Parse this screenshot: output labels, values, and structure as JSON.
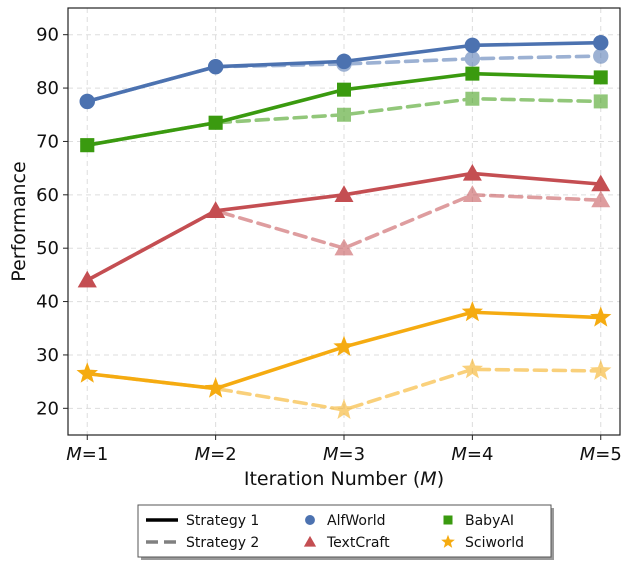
{
  "chart_data": {
    "type": "line",
    "xlabel": "Iteration Number (M)",
    "ylabel": "Performance",
    "categories": [
      "M = 1",
      "M = 2",
      "M = 3",
      "M = 4",
      "M = 5"
    ],
    "x": [
      1,
      2,
      3,
      4,
      5
    ],
    "ylim": [
      15,
      95
    ],
    "yticks": [
      20,
      30,
      40,
      50,
      60,
      70,
      80,
      90
    ],
    "grid": true,
    "legend_position": "bottom",
    "strategies": [
      {
        "name": "Strategy 1",
        "linestyle": "solid",
        "legend_color": "#000000"
      },
      {
        "name": "Strategy 2",
        "linestyle": "dashed",
        "legend_color": "#808080"
      }
    ],
    "environments": [
      {
        "name": "AlfWorld",
        "marker": "circle",
        "color": "#4c72b0"
      },
      {
        "name": "BabyAI",
        "marker": "square",
        "color": "#3a9a0f"
      },
      {
        "name": "TextCraft",
        "marker": "triangle",
        "color": "#c44e52"
      },
      {
        "name": "Sciworld",
        "marker": "star",
        "color": "#f5ab11"
      }
    ],
    "series": [
      {
        "environment": "AlfWorld",
        "strategy": "Strategy 2",
        "values": [
          77.5,
          84.0,
          84.5,
          85.5,
          86.0
        ]
      },
      {
        "environment": "AlfWorld",
        "strategy": "Strategy 1",
        "values": [
          77.5,
          84.0,
          85.0,
          88.0,
          88.5
        ]
      },
      {
        "environment": "BabyAI",
        "strategy": "Strategy 2",
        "values": [
          69.3,
          73.5,
          75.0,
          78.0,
          77.5
        ]
      },
      {
        "environment": "BabyAI",
        "strategy": "Strategy 1",
        "values": [
          69.3,
          73.5,
          79.7,
          82.7,
          82.0
        ]
      },
      {
        "environment": "TextCraft",
        "strategy": "Strategy 2",
        "values": [
          44.0,
          57.0,
          50.0,
          60.0,
          59.0
        ]
      },
      {
        "environment": "TextCraft",
        "strategy": "Strategy 1",
        "values": [
          44.0,
          57.0,
          60.0,
          64.0,
          62.0
        ]
      },
      {
        "environment": "Sciworld",
        "strategy": "Strategy 2",
        "values": [
          26.5,
          23.7,
          19.7,
          27.3,
          27.0
        ]
      },
      {
        "environment": "Sciworld",
        "strategy": "Strategy 1",
        "values": [
          26.5,
          23.7,
          31.5,
          38.0,
          37.0
        ]
      }
    ]
  }
}
